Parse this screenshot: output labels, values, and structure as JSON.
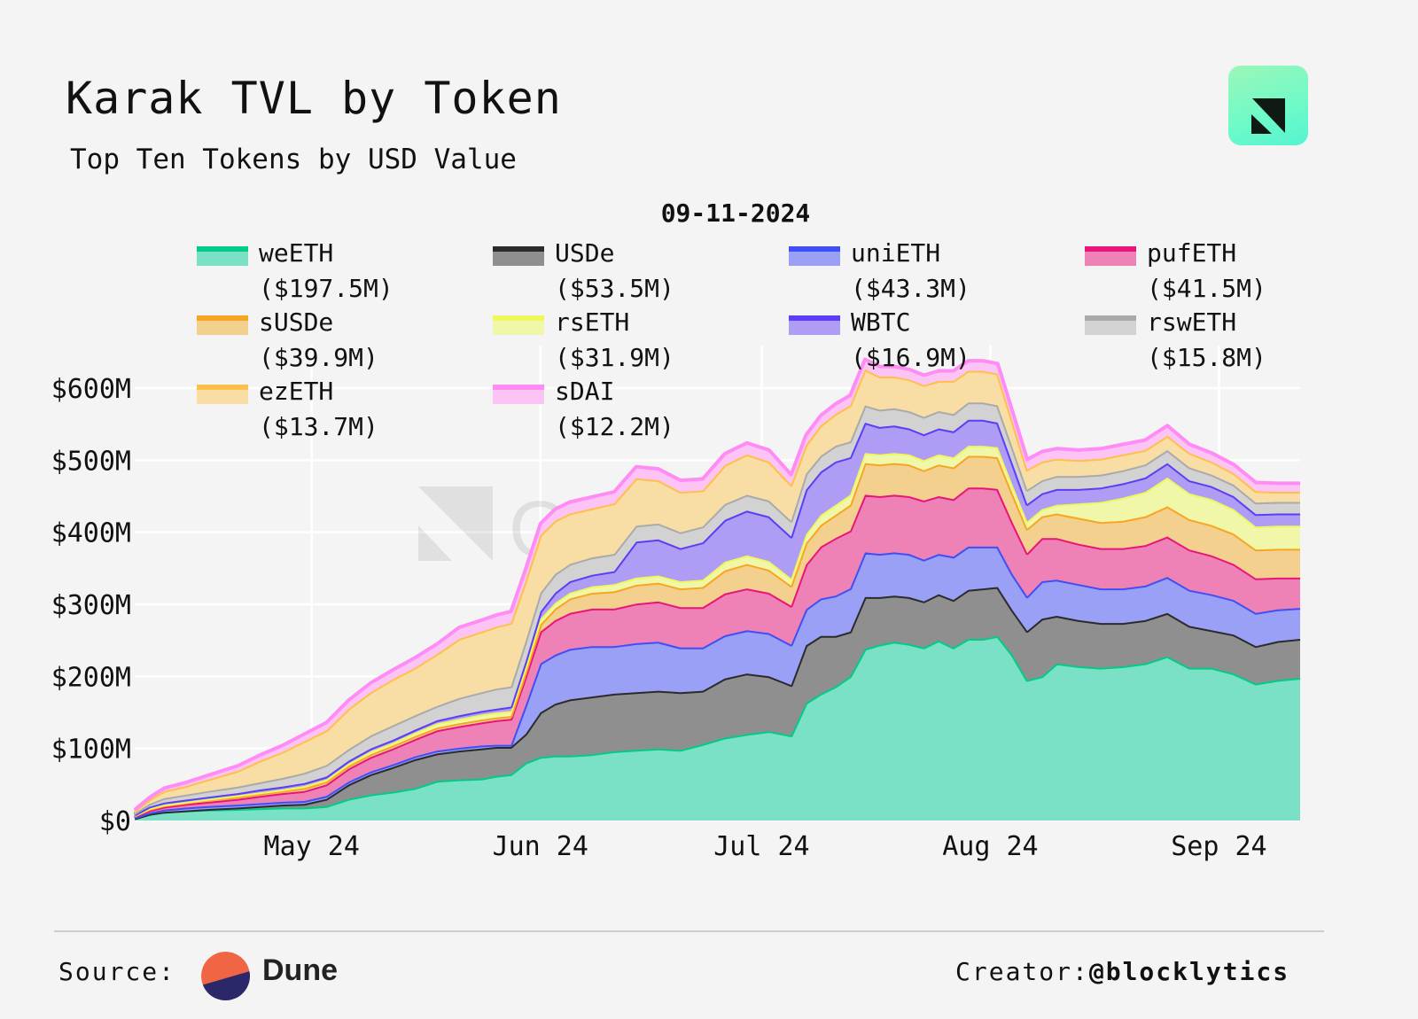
{
  "header": {
    "title": "Karak TVL by Token",
    "subtitle": "Top Ten Tokens by USD Value",
    "date_label": "09-11-2024",
    "logo_icon": "ournetwork-logo-icon"
  },
  "watermark": "OurNetwork",
  "legend": [
    {
      "name": "weETH",
      "value": "($197.5M)",
      "line": "#00cc88",
      "fill": "#7ae0c6"
    },
    {
      "name": "USDe",
      "value": "($53.5M)",
      "line": "#2b2b2b",
      "fill": "#8f8f8f"
    },
    {
      "name": "uniETH",
      "value": "($43.3M)",
      "line": "#3f4ff5",
      "fill": "#9aa0f5"
    },
    {
      "name": "pufETH",
      "value": "($41.5M)",
      "line": "#e8157a",
      "fill": "#ee82b6"
    },
    {
      "name": "sUSDe",
      "value": "($39.9M)",
      "line": "#f7a623",
      "fill": "#f4d08f"
    },
    {
      "name": "rsETH",
      "value": "($31.9M)",
      "line": "#eef75c",
      "fill": "#f0f7a8"
    },
    {
      "name": "WBTC",
      "value": "($16.9M)",
      "line": "#5b3ef5",
      "fill": "#ae9cf5"
    },
    {
      "name": "rswETH",
      "value": "($15.8M)",
      "line": "#aaaaaa",
      "fill": "#d2d2d2"
    },
    {
      "name": "ezETH",
      "value": "($13.7M)",
      "line": "#fec04a",
      "fill": "#f8dea4"
    },
    {
      "name": "sDAI",
      "value": "($12.2M)",
      "line": "#ff8cf5",
      "fill": "#fbc4f4"
    }
  ],
  "footer": {
    "source_label": "Source:",
    "source_name": "Dune",
    "creator_label": "Creator:",
    "creator_handle": "@blocklytics"
  },
  "chart_data": {
    "type": "area",
    "stacked": true,
    "title": "Karak TVL by Token",
    "subtitle": "Top Ten Tokens by USD Value",
    "xlabel": "",
    "ylabel": "",
    "ylim": [
      0,
      600
    ],
    "y_unit": "USD millions",
    "y_ticks": [
      "$0",
      "$100M",
      "$200M",
      "$300M",
      "$400M",
      "$500M",
      "$600M"
    ],
    "x_ticks": [
      "May 24",
      "Jun 24",
      "Jul 24",
      "Aug 24",
      "Sep 24"
    ],
    "x_tick_days": [
      24,
      55,
      85,
      116,
      147
    ],
    "grid": true,
    "legend_position": "top",
    "x_days": [
      0,
      2,
      4,
      7,
      10,
      14,
      17,
      20,
      23,
      26,
      29,
      32,
      35,
      38,
      41,
      44,
      47,
      49,
      51,
      53,
      55,
      57,
      59,
      62,
      65,
      68,
      71,
      74,
      77,
      80,
      83,
      86,
      89,
      91,
      93,
      95,
      97,
      99,
      101,
      103,
      105,
      107,
      109,
      111,
      113,
      115,
      117,
      119,
      121,
      123,
      125,
      128,
      131,
      134,
      137,
      140,
      143,
      146,
      149,
      152,
      155,
      158
    ],
    "x_day_origin": "Apr 30",
    "series": [
      {
        "name": "weETH",
        "values": [
          3,
          9,
          12,
          14,
          15,
          16,
          17,
          18,
          18,
          20,
          30,
          36,
          40,
          45,
          55,
          57,
          58,
          62,
          64,
          80,
          88,
          90,
          90,
          92,
          96,
          98,
          100,
          98,
          106,
          115,
          120,
          124,
          118,
          163,
          176,
          186,
          200,
          238,
          244,
          248,
          245,
          240,
          250,
          240,
          252,
          252,
          256,
          230,
          195,
          200,
          218,
          214,
          212,
          214,
          218,
          228,
          212,
          212,
          204,
          190,
          195,
          198
        ]
      },
      {
        "name": "USDe",
        "values": [
          0,
          0,
          0,
          0,
          1,
          2,
          3,
          4,
          5,
          10,
          20,
          28,
          34,
          40,
          38,
          40,
          42,
          40,
          38,
          40,
          62,
          72,
          78,
          80,
          80,
          80,
          80,
          80,
          74,
          82,
          84,
          76,
          70,
          80,
          80,
          70,
          62,
          72,
          66,
          64,
          65,
          64,
          64,
          66,
          68,
          70,
          68,
          62,
          68,
          80,
          66,
          64,
          62,
          60,
          60,
          60,
          58,
          52,
          54,
          52,
          54,
          54
        ]
      },
      {
        "name": "uniETH",
        "values": [
          1,
          2,
          3,
          4,
          4,
          4,
          4,
          4,
          4,
          4,
          4,
          4,
          4,
          4,
          4,
          4,
          4,
          3,
          3,
          40,
          68,
          68,
          70,
          70,
          66,
          68,
          68,
          62,
          60,
          60,
          60,
          60,
          56,
          50,
          52,
          56,
          60,
          62,
          60,
          60,
          60,
          58,
          56,
          60,
          60,
          58,
          56,
          50,
          48,
          52,
          50,
          50,
          48,
          48,
          48,
          50,
          50,
          50,
          48,
          46,
          44,
          43
        ]
      },
      {
        "name": "pufETH",
        "values": [
          2,
          3,
          4,
          5,
          6,
          8,
          10,
          12,
          14,
          16,
          18,
          20,
          22,
          24,
          28,
          30,
          32,
          34,
          36,
          40,
          44,
          48,
          50,
          52,
          52,
          55,
          56,
          56,
          56,
          58,
          58,
          56,
          54,
          62,
          72,
          80,
          80,
          80,
          80,
          80,
          80,
          82,
          80,
          80,
          82,
          82,
          80,
          72,
          60,
          60,
          58,
          56,
          56,
          56,
          56,
          56,
          56,
          54,
          50,
          48,
          44,
          42
        ]
      },
      {
        "name": "sUSDe",
        "values": [
          1,
          2,
          2,
          2,
          3,
          3,
          3,
          3,
          4,
          4,
          4,
          4,
          4,
          4,
          4,
          4,
          4,
          4,
          4,
          6,
          10,
          16,
          20,
          22,
          24,
          26,
          26,
          26,
          28,
          32,
          34,
          32,
          28,
          30,
          30,
          32,
          36,
          44,
          44,
          44,
          44,
          42,
          44,
          44,
          44,
          44,
          44,
          40,
          34,
          30,
          34,
          36,
          36,
          38,
          40,
          42,
          42,
          42,
          42,
          40,
          40,
          40
        ]
      },
      {
        "name": "rsETH",
        "values": [
          0,
          1,
          1,
          1,
          1,
          2,
          2,
          2,
          3,
          3,
          3,
          4,
          4,
          5,
          6,
          6,
          7,
          7,
          7,
          7,
          8,
          8,
          8,
          9,
          10,
          10,
          10,
          10,
          10,
          12,
          12,
          12,
          10,
          12,
          14,
          14,
          14,
          14,
          14,
          14,
          14,
          14,
          14,
          14,
          14,
          14,
          14,
          12,
          10,
          10,
          12,
          20,
          28,
          32,
          34,
          40,
          36,
          36,
          34,
          32,
          32,
          32
        ]
      },
      {
        "name": "WBTC",
        "values": [
          1,
          2,
          3,
          3,
          3,
          3,
          4,
          4,
          4,
          4,
          4,
          4,
          4,
          4,
          4,
          5,
          5,
          5,
          6,
          8,
          10,
          14,
          16,
          16,
          18,
          50,
          50,
          46,
          52,
          58,
          62,
          62,
          58,
          62,
          60,
          60,
          52,
          42,
          38,
          38,
          36,
          36,
          36,
          36,
          36,
          36,
          34,
          30,
          24,
          22,
          22,
          20,
          20,
          20,
          20,
          20,
          18,
          18,
          18,
          17,
          17,
          17
        ]
      },
      {
        "name": "rswETH",
        "values": [
          2,
          4,
          6,
          7,
          8,
          9,
          10,
          12,
          14,
          16,
          16,
          18,
          20,
          20,
          20,
          24,
          26,
          28,
          28,
          28,
          26,
          26,
          24,
          24,
          24,
          22,
          22,
          22,
          22,
          22,
          22,
          22,
          22,
          22,
          22,
          22,
          22,
          24,
          24,
          24,
          24,
          24,
          24,
          24,
          24,
          24,
          24,
          22,
          20,
          18,
          18,
          18,
          18,
          18,
          18,
          18,
          18,
          16,
          16,
          16,
          16,
          16
        ]
      },
      {
        "name": "ezETH",
        "values": [
          3,
          6,
          10,
          12,
          16,
          22,
          30,
          36,
          44,
          48,
          56,
          60,
          64,
          66,
          72,
          82,
          84,
          86,
          88,
          84,
          80,
          74,
          70,
          68,
          70,
          66,
          60,
          56,
          50,
          54,
          56,
          54,
          50,
          40,
          42,
          44,
          50,
          50,
          46,
          44,
          44,
          44,
          42,
          46,
          44,
          44,
          44,
          36,
          28,
          26,
          24,
          22,
          22,
          22,
          20,
          20,
          20,
          18,
          16,
          16,
          14,
          14
        ]
      },
      {
        "name": "sDAI",
        "values": [
          2,
          3,
          4,
          5,
          6,
          7,
          8,
          9,
          10,
          11,
          12,
          13,
          13,
          14,
          14,
          16,
          16,
          16,
          16,
          16,
          16,
          16,
          16,
          16,
          16,
          16,
          16,
          16,
          16,
          16,
          16,
          16,
          14,
          14,
          14,
          14,
          14,
          14,
          14,
          14,
          14,
          14,
          14,
          14,
          14,
          14,
          14,
          14,
          14,
          14,
          14,
          14,
          14,
          14,
          14,
          14,
          12,
          12,
          12,
          12,
          12,
          12
        ]
      }
    ]
  }
}
